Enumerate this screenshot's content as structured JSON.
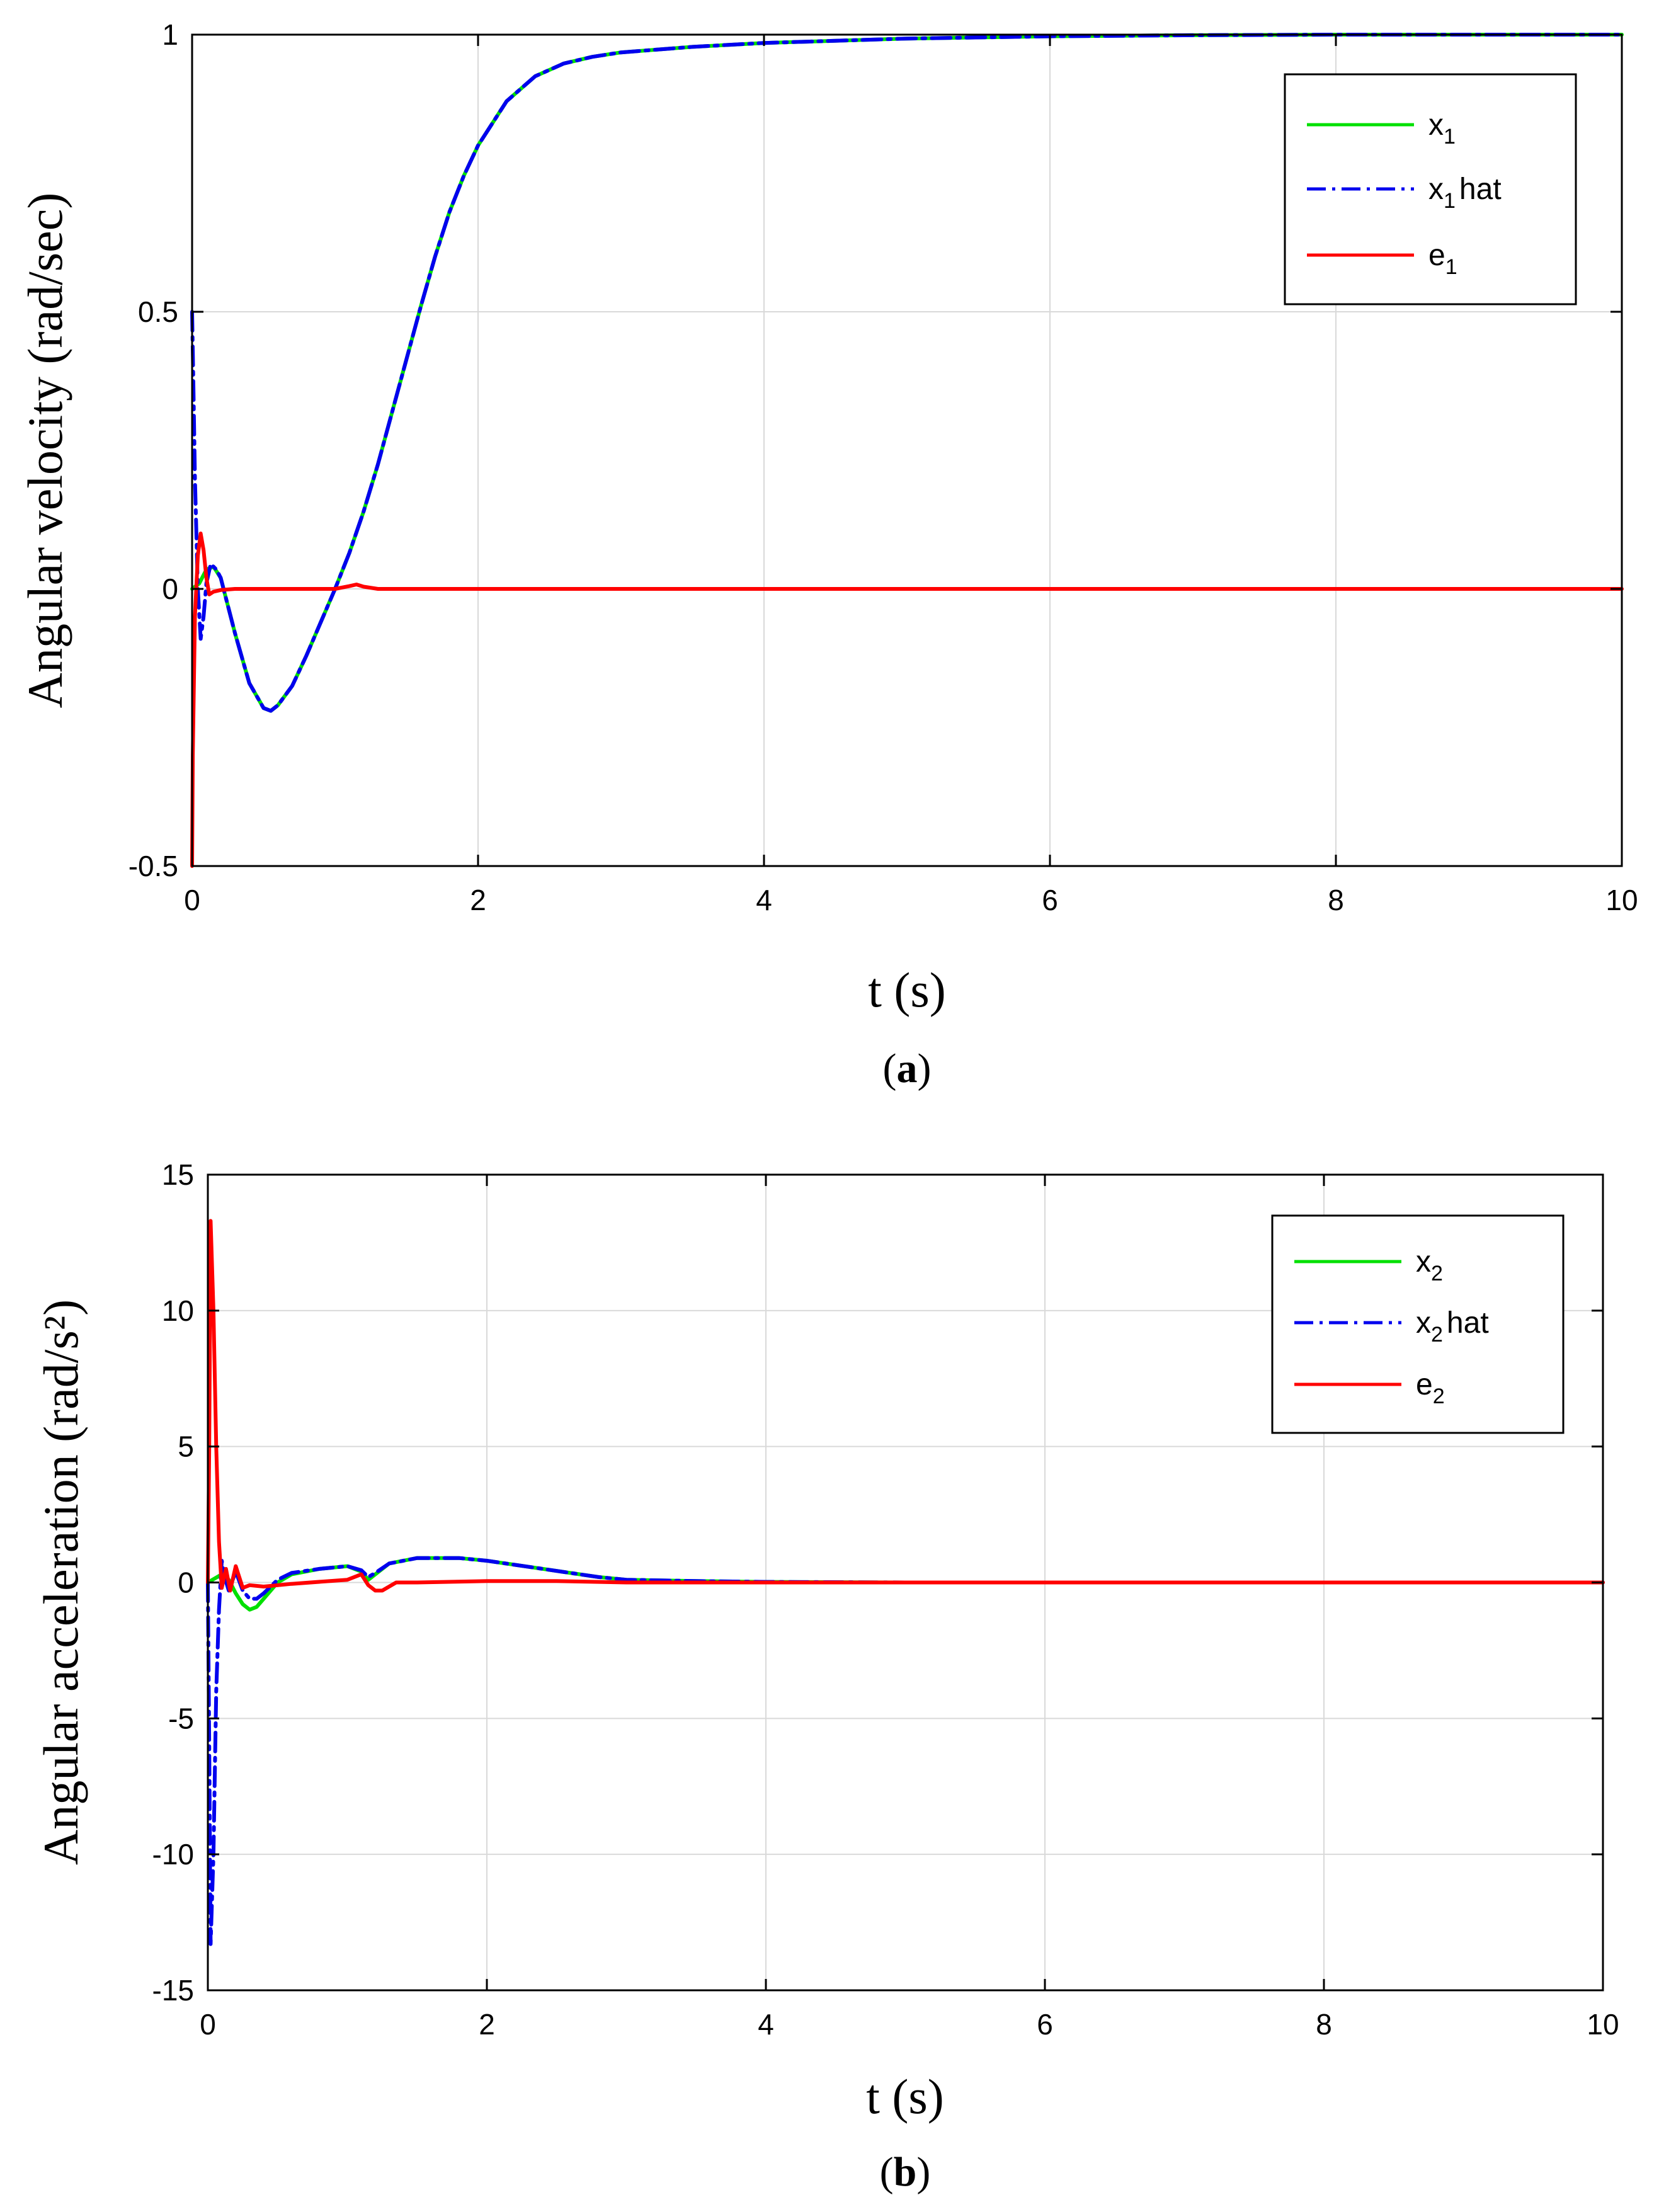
{
  "chart_data": [
    {
      "type": "line",
      "caption": {
        "open": "(",
        "letter": "a",
        "close": ")"
      },
      "xlabel": "t (s)",
      "ylabel": "Angular velocity (rad/sec)",
      "xlim": [
        0,
        10
      ],
      "ylim": [
        -0.5,
        1
      ],
      "xticks": [
        "0",
        "2",
        "4",
        "6",
        "8",
        "10"
      ],
      "yticks": [
        "-0.5",
        "0",
        "0.5",
        "1"
      ],
      "grid": true,
      "legend_position": "top-right",
      "series": [
        {
          "name": "x_1",
          "label_base": "x",
          "label_sub": "1",
          "label_suffix": "",
          "color": "#00e000",
          "style": "solid",
          "x": [
            0,
            0.05,
            0.1,
            0.15,
            0.2,
            0.3,
            0.4,
            0.5,
            0.55,
            0.6,
            0.7,
            0.8,
            0.9,
            1.0,
            1.1,
            1.2,
            1.3,
            1.4,
            1.5,
            1.6,
            1.7,
            1.8,
            1.9,
            2.0,
            2.2,
            2.4,
            2.6,
            2.8,
            3.0,
            3.5,
            4.0,
            5.0,
            6.0,
            7.0,
            8.0,
            9.0,
            10.0
          ],
          "y": [
            0,
            0.01,
            0.035,
            0.04,
            0.02,
            -0.08,
            -0.17,
            -0.215,
            -0.22,
            -0.21,
            -0.175,
            -0.12,
            -0.06,
            0,
            0.065,
            0.14,
            0.225,
            0.32,
            0.415,
            0.51,
            0.6,
            0.68,
            0.745,
            0.8,
            0.88,
            0.925,
            0.948,
            0.96,
            0.968,
            0.978,
            0.985,
            0.993,
            0.997,
            0.999,
            1.0,
            1.0,
            1.0
          ]
        },
        {
          "name": "x_1 hat",
          "label_base": "x",
          "label_sub": "1",
          "label_suffix": "hat",
          "color": "#0000ee",
          "style": "dashdot",
          "x": [
            0,
            0.01,
            0.02,
            0.04,
            0.06,
            0.08,
            0.1,
            0.13,
            0.17,
            0.2,
            0.3,
            0.4,
            0.5,
            0.55,
            0.6,
            0.7,
            0.8,
            0.9,
            1.0,
            1.1,
            1.2,
            1.3,
            1.4,
            1.5,
            1.6,
            1.7,
            1.8,
            1.9,
            2.0,
            2.2,
            2.4,
            2.6,
            2.8,
            3.0,
            3.5,
            4.0,
            5.0,
            6.0,
            7.0,
            8.0,
            9.0,
            10.0
          ],
          "y": [
            0.5,
            0.35,
            0.2,
            0.0,
            -0.09,
            -0.05,
            0.01,
            0.045,
            0.035,
            0.02,
            -0.08,
            -0.17,
            -0.215,
            -0.22,
            -0.21,
            -0.175,
            -0.12,
            -0.06,
            0,
            0.065,
            0.14,
            0.225,
            0.32,
            0.415,
            0.51,
            0.6,
            0.68,
            0.745,
            0.8,
            0.88,
            0.925,
            0.948,
            0.96,
            0.968,
            0.978,
            0.985,
            0.993,
            0.997,
            0.999,
            1.0,
            1.0,
            1.0
          ]
        },
        {
          "name": "e_1",
          "label_base": "e",
          "label_sub": "1",
          "label_suffix": "",
          "color": "#ff0000",
          "style": "solid",
          "x": [
            0,
            0.005,
            0.02,
            0.04,
            0.06,
            0.08,
            0.1,
            0.12,
            0.15,
            0.2,
            0.3,
            0.5,
            1.0,
            1.1,
            1.15,
            1.2,
            1.3,
            2.0,
            4.0,
            6.0,
            8.0,
            10.0
          ],
          "y": [
            -0.5,
            -0.3,
            -0.05,
            0.06,
            0.1,
            0.07,
            0.02,
            -0.01,
            -0.005,
            -0.002,
            0.0,
            0.0,
            0.0,
            0.005,
            0.008,
            0.004,
            0.0,
            0.0,
            0.0,
            0.0,
            0.0,
            0.0
          ]
        }
      ]
    },
    {
      "type": "line",
      "caption": {
        "open": "(",
        "letter": "b",
        "close": ")"
      },
      "xlabel": "t (s)",
      "ylabel": "Angular acceleration (rad/s²)",
      "xlim": [
        0,
        10
      ],
      "ylim": [
        -15,
        15
      ],
      "xticks": [
        "0",
        "2",
        "4",
        "6",
        "8",
        "10"
      ],
      "yticks": [
        "-15",
        "-10",
        "-5",
        "0",
        "5",
        "10",
        "15"
      ],
      "grid": true,
      "legend_position": "top-right",
      "series": [
        {
          "name": "x_2",
          "label_base": "x",
          "label_sub": "2",
          "label_suffix": "",
          "color": "#00e000",
          "style": "solid",
          "x": [
            0,
            0.1,
            0.15,
            0.2,
            0.25,
            0.3,
            0.35,
            0.4,
            0.5,
            0.6,
            0.8,
            1.0,
            1.1,
            1.15,
            1.2,
            1.3,
            1.5,
            1.8,
            2.0,
            2.4,
            2.8,
            3.0,
            3.5,
            4.0,
            5.0,
            6.0,
            8.0,
            10.0
          ],
          "y": [
            0,
            0.3,
            0.1,
            -0.4,
            -0.8,
            -1.0,
            -0.9,
            -0.6,
            0.0,
            0.3,
            0.5,
            0.6,
            0.4,
            0.1,
            0.3,
            0.7,
            0.9,
            0.9,
            0.8,
            0.5,
            0.2,
            0.1,
            0.05,
            0.02,
            0,
            0,
            0,
            0
          ]
        },
        {
          "name": "x_2 hat",
          "label_base": "x",
          "label_sub": "2",
          "label_suffix": "hat",
          "color": "#0000ee",
          "style": "dashdot",
          "x": [
            0,
            0.01,
            0.02,
            0.04,
            0.06,
            0.08,
            0.1,
            0.12,
            0.15,
            0.2,
            0.25,
            0.3,
            0.35,
            0.4,
            0.5,
            0.6,
            0.8,
            1.0,
            1.1,
            1.15,
            1.2,
            1.3,
            1.5,
            1.8,
            2.0,
            2.4,
            2.8,
            3.0,
            3.5,
            4.0,
            5.0,
            6.0,
            8.0,
            10.0
          ],
          "y": [
            0,
            -6,
            -13.3,
            -10,
            -4,
            -1,
            0.8,
            0.2,
            -0.3,
            0.4,
            -0.3,
            -0.6,
            -0.6,
            -0.4,
            0.1,
            0.35,
            0.5,
            0.6,
            0.45,
            0.2,
            0.35,
            0.7,
            0.9,
            0.9,
            0.8,
            0.5,
            0.2,
            0.1,
            0.05,
            0.02,
            0,
            0,
            0,
            0
          ]
        },
        {
          "name": "e_2",
          "label_base": "e",
          "label_sub": "2",
          "label_suffix": "",
          "color": "#ff0000",
          "style": "solid",
          "x": [
            0,
            0.01,
            0.02,
            0.04,
            0.06,
            0.08,
            0.1,
            0.13,
            0.16,
            0.2,
            0.25,
            0.3,
            0.4,
            0.6,
            1.0,
            1.1,
            1.15,
            1.2,
            1.25,
            1.35,
            1.5,
            2.0,
            2.5,
            3.0,
            4.0,
            10.0
          ],
          "y": [
            0,
            5,
            13.3,
            10,
            5,
            1.5,
            -0.2,
            0.5,
            -0.3,
            0.6,
            -0.2,
            -0.1,
            -0.15,
            -0.05,
            0.1,
            0.3,
            -0.1,
            -0.3,
            -0.3,
            0.0,
            0.0,
            0.05,
            0.05,
            0.0,
            0.0,
            0.0
          ]
        }
      ]
    }
  ]
}
